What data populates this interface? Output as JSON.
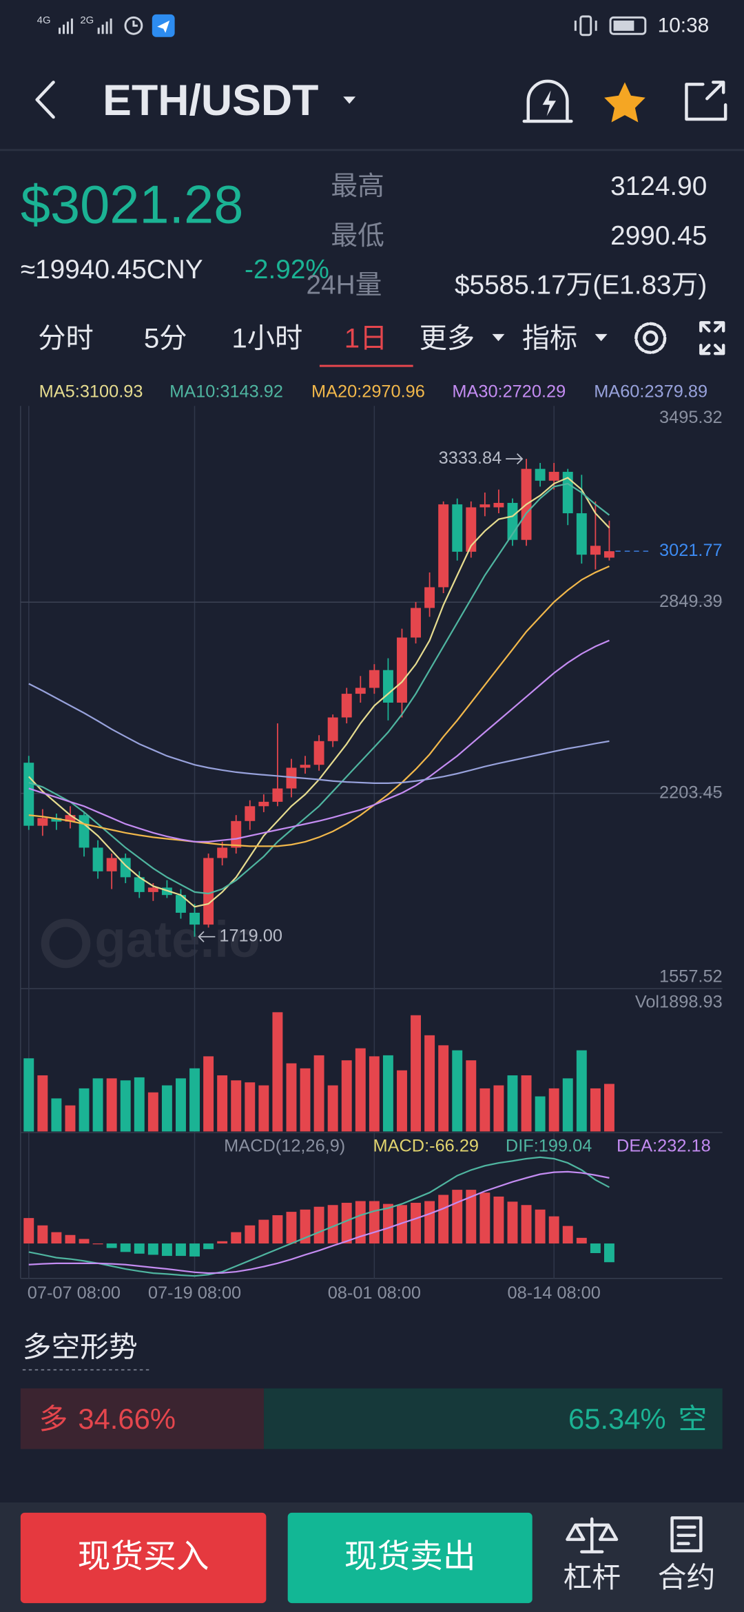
{
  "status_bar": {
    "signal_1": "4G",
    "signal_2": "2G",
    "time": "10:38"
  },
  "header": {
    "pair": "ETH/USDT"
  },
  "ticker": {
    "price": "$3021.28",
    "cny": "≈19940.45CNY",
    "change": "-2.92%",
    "high_label": "最高",
    "high": "3124.90",
    "low_label": "最低",
    "low": "2990.45",
    "volume_label": "24H量",
    "volume": "$5585.17万(E1.83万)"
  },
  "tabs": {
    "items": [
      "分时",
      "5分",
      "1小时",
      "1日",
      "更多",
      "指标"
    ],
    "active": 3
  },
  "chart_data": {
    "type": "candlestick",
    "categories": [
      "07-07 08:00",
      null,
      null,
      null,
      null,
      null,
      null,
      null,
      null,
      null,
      null,
      null,
      "07-19 08:00",
      null,
      null,
      null,
      null,
      null,
      null,
      null,
      null,
      null,
      null,
      null,
      null,
      "08-01 08:00",
      null,
      null,
      null,
      null,
      null,
      null,
      null,
      null,
      null,
      null,
      null,
      null,
      "08-14 08:00",
      null,
      null,
      null,
      null
    ],
    "open": [
      2307,
      2094,
      2120,
      2108,
      2130,
      2020,
      1940,
      1985,
      1920,
      1870,
      1885,
      1860,
      1800,
      1760,
      1985,
      2020,
      2110,
      2160,
      2175,
      2220,
      2290,
      2300,
      2380,
      2460,
      2540,
      2560,
      2620,
      2510,
      2730,
      2830,
      2900,
      3180,
      3020,
      3170,
      3170,
      3185,
      3060,
      3300,
      3260,
      3290,
      3150,
      3010,
      3000
    ],
    "high": [
      2330,
      2150,
      2135,
      2160,
      2140,
      2045,
      2000,
      2000,
      1940,
      1900,
      1910,
      1880,
      1830,
      2000,
      2040,
      2130,
      2180,
      2200,
      2440,
      2320,
      2330,
      2400,
      2470,
      2560,
      2600,
      2640,
      2660,
      2760,
      2850,
      2950,
      3190,
      3200,
      3190,
      3220,
      3230,
      3200,
      3333.84,
      3320,
      3320,
      3300,
      3280,
      3190,
      3124.9
    ],
    "low": [
      2080,
      2060,
      2080,
      2085,
      1990,
      1915,
      1880,
      1900,
      1850,
      1840,
      1850,
      1780,
      1719,
      1750,
      1960,
      2000,
      2080,
      2140,
      2160,
      2190,
      2270,
      2280,
      2360,
      2440,
      2510,
      2540,
      2450,
      2460,
      2710,
      2800,
      2880,
      2990,
      3000,
      3140,
      3150,
      3040,
      3040,
      3240,
      3230,
      3110,
      2980,
      2960,
      2990.45
    ],
    "close": [
      2094,
      2120,
      2108,
      2130,
      2020,
      1940,
      1985,
      1920,
      1870,
      1885,
      1860,
      1800,
      1760,
      1985,
      2020,
      2110,
      2160,
      2175,
      2220,
      2290,
      2300,
      2380,
      2460,
      2540,
      2560,
      2620,
      2510,
      2730,
      2830,
      2900,
      3180,
      3020,
      3170,
      3180,
      3185,
      3060,
      3300,
      3260,
      3290,
      3150,
      3010,
      3040,
      3021.77
    ],
    "low_label": "1719.00",
    "up_color": "#e5464d",
    "down_color": "#1bb394",
    "ylim": [
      1557.52,
      3495.32
    ],
    "yticks": [
      1557.52,
      2203.45,
      2849.39,
      3495.32
    ],
    "grid": true,
    "watermark": "gate.io",
    "ma": [
      {
        "name": "MA5:3100.93",
        "color": "#e6dc8f",
        "values": [
          2260,
          2210,
          2170,
          2130,
          2100,
          2060,
          2010,
          1960,
          1920,
          1890,
          1875,
          1860,
          1820,
          1830,
          1870,
          1920,
          1990,
          2060,
          2110,
          2160,
          2200,
          2250,
          2310,
          2370,
          2440,
          2500,
          2540,
          2580,
          2640,
          2720,
          2840,
          2940,
          3040,
          3090,
          3130,
          3140,
          3180,
          3210,
          3250,
          3270,
          3230,
          3150,
          3100.93
        ]
      },
      {
        "name": "MA10:3143.92",
        "color": "#4fb5a0",
        "values": [
          2240,
          2225,
          2200,
          2175,
          2140,
          2100,
          2060,
          2020,
          1985,
          1950,
          1920,
          1895,
          1870,
          1865,
          1880,
          1910,
          1950,
          1990,
          2040,
          2080,
          2120,
          2160,
          2210,
          2260,
          2310,
          2360,
          2410,
          2470,
          2540,
          2620,
          2700,
          2780,
          2860,
          2940,
          3010,
          3080,
          3150,
          3200,
          3240,
          3250,
          3220,
          3180,
          3143.92
        ]
      },
      {
        "name": "MA20:2970.96",
        "color": "#f2b84b",
        "values": [
          2130,
          2125,
          2118,
          2110,
          2100,
          2090,
          2080,
          2070,
          2062,
          2055,
          2050,
          2045,
          2040,
          2035,
          2030,
          2028,
          2025,
          2025,
          2025,
          2030,
          2040,
          2055,
          2075,
          2100,
          2130,
          2165,
          2200,
          2240,
          2285,
          2335,
          2395,
          2450,
          2510,
          2570,
          2630,
          2690,
          2750,
          2800,
          2850,
          2890,
          2925,
          2950,
          2970.96
        ]
      },
      {
        "name": "MA30:2720.29",
        "color": "#c48cf2",
        "values": [
          2220,
          2205,
          2190,
          2175,
          2160,
          2140,
          2120,
          2100,
          2085,
          2070,
          2058,
          2048,
          2040,
          2040,
          2045,
          2050,
          2060,
          2070,
          2080,
          2090,
          2100,
          2110,
          2122,
          2135,
          2148,
          2165,
          2185,
          2205,
          2230,
          2260,
          2295,
          2330,
          2370,
          2410,
          2450,
          2490,
          2530,
          2570,
          2610,
          2645,
          2675,
          2700,
          2720.29
        ]
      },
      {
        "name": "MA60:2379.89",
        "color": "#98a2dc",
        "values": [
          2574,
          2550,
          2525,
          2500,
          2475,
          2448,
          2420,
          2395,
          2370,
          2350,
          2330,
          2315,
          2300,
          2290,
          2282,
          2275,
          2270,
          2266,
          2262,
          2258,
          2254,
          2250,
          2245,
          2242,
          2240,
          2238,
          2238,
          2240,
          2245,
          2252,
          2260,
          2270,
          2282,
          2294,
          2305,
          2315,
          2325,
          2335,
          2345,
          2355,
          2363,
          2372,
          2379.89
        ]
      }
    ],
    "volume": {
      "name": "Vol1898.93",
      "ylim": [
        0,
        4800
      ],
      "values": [
        2920,
        2240,
        1320,
        1040,
        1720,
        2120,
        2120,
        2040,
        2160,
        1560,
        1840,
        2120,
        2520,
        3000,
        2240,
        2040,
        1960,
        1840,
        4760,
        2720,
        2520,
        3040,
        1840,
        2840,
        3320,
        3000,
        3040,
        2440,
        4640,
        3840,
        3440,
        3240,
        2840,
        1720,
        1840,
        2240,
        2240,
        1400,
        1720,
        2120,
        3240,
        1720,
        1898.93
      ]
    },
    "macd": {
      "title": "MACD(12,26,9)",
      "ylim": [
        -120,
        320
      ],
      "series": [
        {
          "name": "MACD:-66.29",
          "color": "#e0d36e",
          "values": [
            90,
            64,
            40,
            30,
            16,
            0,
            -16,
            -30,
            -36,
            -40,
            -44,
            -44,
            -46,
            -20,
            8,
            40,
            64,
            84,
            100,
            112,
            120,
            130,
            136,
            144,
            150,
            150,
            140,
            136,
            144,
            150,
            172,
            190,
            190,
            180,
            166,
            148,
            136,
            120,
            96,
            62,
            20,
            -34,
            -66.29
          ]
        },
        {
          "name": "DIF:199.04",
          "color": "#4fb5a0",
          "values": [
            -30,
            -40,
            -50,
            -55,
            -62,
            -70,
            -80,
            -90,
            -98,
            -105,
            -108,
            -112,
            -115,
            -110,
            -100,
            -80,
            -60,
            -40,
            -20,
            0,
            20,
            40,
            60,
            80,
            100,
            115,
            125,
            140,
            160,
            180,
            210,
            240,
            260,
            275,
            285,
            292,
            300,
            305,
            300,
            285,
            260,
            225,
            199.04
          ]
        },
        {
          "name": "DEA:232.18",
          "color": "#c48cf2",
          "values": [
            -75,
            -72,
            -70,
            -70,
            -70,
            -70,
            -72,
            -75,
            -80,
            -85,
            -90,
            -96,
            -102,
            -105,
            -104,
            -100,
            -92,
            -82,
            -70,
            -56,
            -40,
            -25,
            -8,
            8,
            25,
            40,
            55,
            72,
            88,
            105,
            124,
            145,
            165,
            185,
            202,
            218,
            232,
            245,
            252,
            254,
            250,
            242,
            232.18
          ]
        }
      ]
    }
  },
  "sentiment": {
    "title": "多空形势",
    "long_label": "多",
    "long": 34.66,
    "long_value_label": "34.66%",
    "short_label": "空",
    "short": 65.34,
    "short_value_label": "65.34%"
  },
  "bottom_bar": {
    "buy": "现货买入",
    "sell": "现货卖出",
    "margin": "杠杆",
    "futures": "合约"
  }
}
